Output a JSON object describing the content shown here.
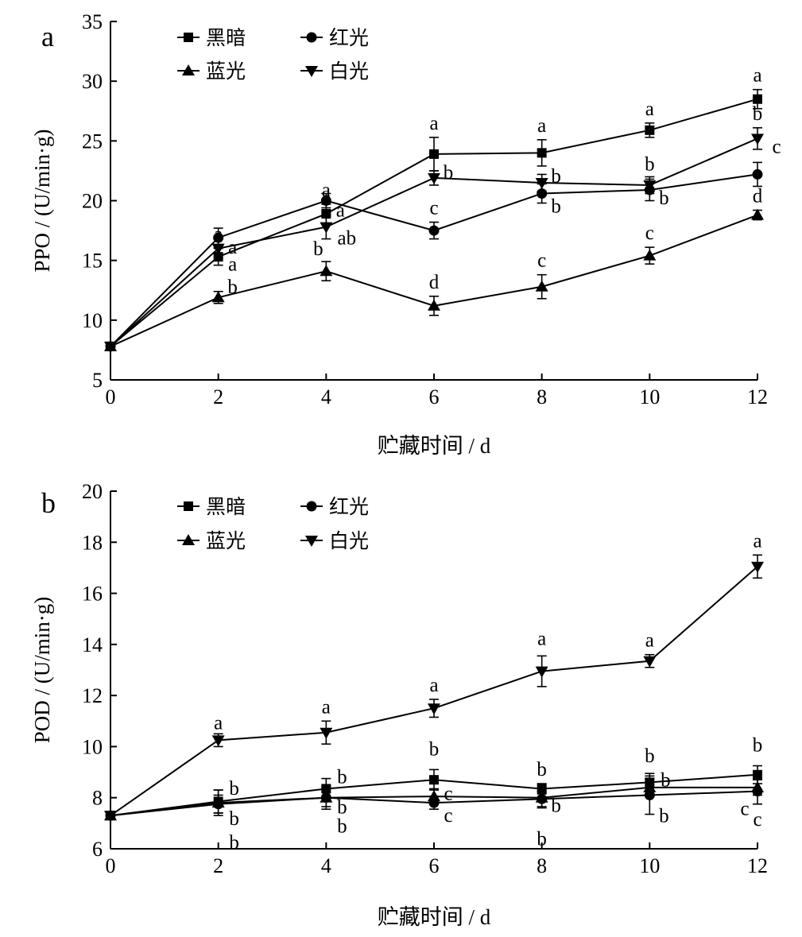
{
  "chart_data": [
    {
      "type": "line",
      "panel_label": "a",
      "ylabel": "PPO / (U/min·g)",
      "xlabel": "贮藏时间 / d",
      "x": [
        0,
        2,
        4,
        6,
        8,
        10,
        12
      ],
      "xlim": [
        0,
        12
      ],
      "ylim": [
        5,
        35
      ],
      "xticks": [
        "0",
        "2",
        "4",
        "6",
        "8",
        "10",
        "12"
      ],
      "yticks": [
        "5",
        "10",
        "15",
        "20",
        "25",
        "30",
        "35"
      ],
      "grid": false,
      "legend_position": "top-left",
      "series": [
        {
          "name": "黑暗",
          "marker": "square",
          "values": [
            7.8,
            15.3,
            18.9,
            23.9,
            24.0,
            25.9,
            28.5
          ],
          "errors": [
            0.3,
            0.7,
            0.8,
            1.4,
            1.1,
            0.6,
            0.8
          ],
          "labels": [
            "",
            "a",
            "a",
            "a",
            "a",
            "a",
            "a"
          ]
        },
        {
          "name": "红光",
          "marker": "circle",
          "values": [
            7.8,
            16.9,
            20.0,
            17.5,
            20.6,
            20.9,
            22.2
          ],
          "errors": [
            0.3,
            0.8,
            0.6,
            0.7,
            0.8,
            0.9,
            1.0
          ],
          "labels": [
            "",
            "a",
            "a",
            "c",
            "b",
            "b",
            "c"
          ]
        },
        {
          "name": "蓝光",
          "marker": "triangle-up",
          "values": [
            7.8,
            11.9,
            14.1,
            11.2,
            12.8,
            15.4,
            18.8
          ],
          "errors": [
            0.3,
            0.5,
            0.8,
            0.8,
            1.0,
            0.7,
            0.4
          ],
          "labels": [
            "",
            "b",
            "b",
            "d",
            "c",
            "c",
            "d"
          ]
        },
        {
          "name": "白光",
          "marker": "triangle-down",
          "values": [
            7.8,
            16.0,
            17.8,
            21.9,
            21.5,
            21.3,
            25.2
          ],
          "errors": [
            0.3,
            0.8,
            1.0,
            0.6,
            0.7,
            0.7,
            0.9
          ],
          "labels": [
            "",
            "a",
            "ab",
            "b",
            "b",
            "b",
            "b"
          ]
        }
      ]
    },
    {
      "type": "line",
      "panel_label": "b",
      "ylabel": "POD / (U/min·g)",
      "xlabel": "贮藏时间 / d",
      "x": [
        0,
        2,
        4,
        6,
        8,
        10,
        12
      ],
      "xlim": [
        0,
        12
      ],
      "ylim": [
        6,
        20
      ],
      "xticks": [
        "0",
        "2",
        "4",
        "6",
        "8",
        "10",
        "12"
      ],
      "yticks": [
        "6",
        "8",
        "10",
        "12",
        "14",
        "16",
        "18",
        "20"
      ],
      "grid": false,
      "legend_position": "top-left",
      "series": [
        {
          "name": "黑暗",
          "marker": "square",
          "values": [
            7.3,
            7.85,
            8.35,
            8.7,
            8.35,
            8.6,
            8.9
          ],
          "errors": [
            0.1,
            0.45,
            0.4,
            0.4,
            0.2,
            0.35,
            0.35
          ],
          "labels": [
            "",
            "b",
            "b",
            "b",
            "b",
            "b",
            "b"
          ]
        },
        {
          "name": "红光",
          "marker": "circle",
          "values": [
            7.3,
            7.75,
            8.0,
            7.8,
            7.95,
            8.1,
            8.25
          ],
          "errors": [
            0.1,
            0.35,
            0.35,
            0.25,
            0.3,
            0.75,
            0.5
          ],
          "labels": [
            "",
            "b",
            "b",
            "c",
            "b",
            "b",
            "c"
          ]
        },
        {
          "name": "蓝光",
          "marker": "triangle-up",
          "values": [
            7.3,
            7.8,
            8.0,
            8.05,
            8.0,
            8.4,
            8.4
          ],
          "errors": [
            0.1,
            0.5,
            0.45,
            0.3,
            0.4,
            0.35,
            0.3
          ],
          "labels": [
            "",
            "b",
            "b",
            "c",
            "b",
            "b",
            "c"
          ]
        },
        {
          "name": "白光",
          "marker": "triangle-down",
          "values": [
            7.3,
            10.25,
            10.55,
            11.5,
            12.95,
            13.35,
            17.05
          ],
          "errors": [
            0.1,
            0.25,
            0.45,
            0.35,
            0.6,
            0.25,
            0.45
          ],
          "labels": [
            "",
            "a",
            "a",
            "a",
            "a",
            "a",
            "a"
          ]
        }
      ]
    }
  ]
}
